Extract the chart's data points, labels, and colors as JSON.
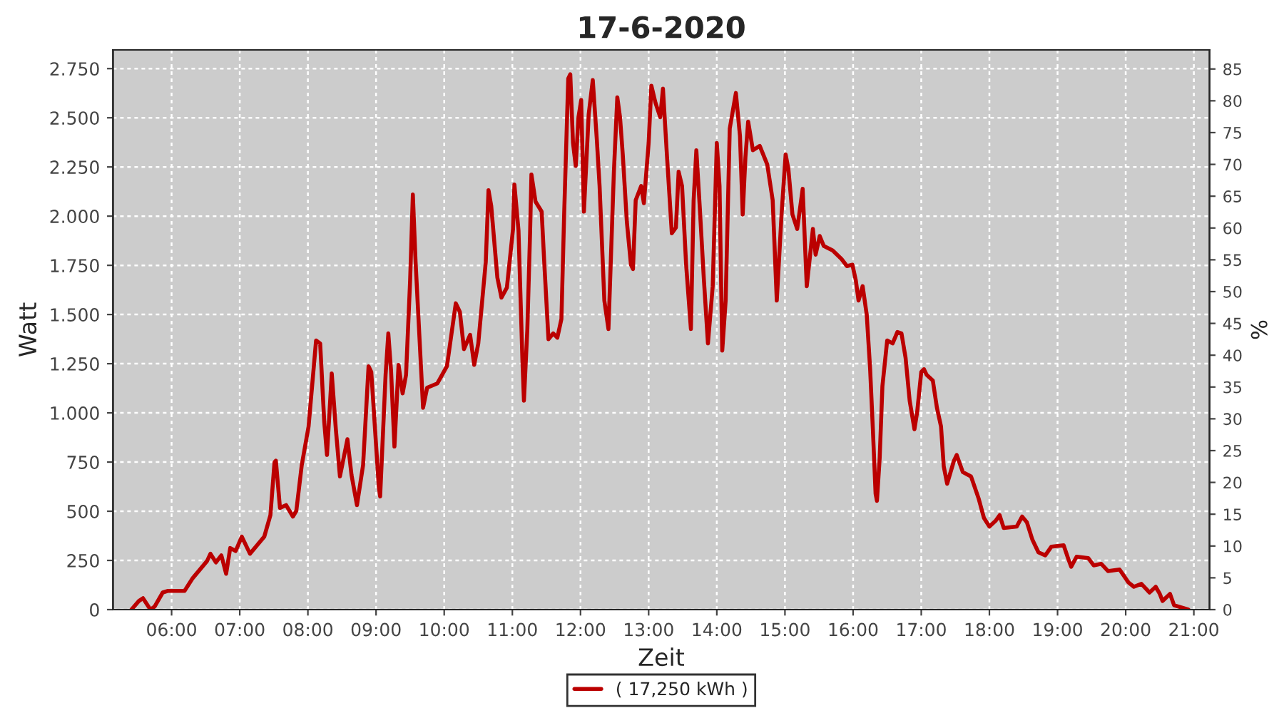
{
  "chart_data": {
    "type": "line",
    "title": "17-6-2020",
    "xlabel": "Zeit",
    "ylabel": "Watt",
    "y2label": "%",
    "x": [
      5.41,
      5.52,
      5.58,
      5.69,
      5.75,
      5.87,
      5.94,
      6.19,
      6.31,
      6.52,
      6.57,
      6.65,
      6.73,
      6.8,
      6.86,
      6.94,
      7.03,
      7.15,
      7.36,
      7.45,
      7.51,
      7.53,
      7.59,
      7.68,
      7.78,
      7.83,
      7.91,
      8.01,
      8.12,
      8.18,
      8.24,
      8.28,
      8.35,
      8.41,
      8.47,
      8.58,
      8.64,
      8.72,
      8.81,
      8.89,
      8.93,
      9.04,
      9.06,
      9.14,
      9.18,
      9.22,
      9.27,
      9.33,
      9.39,
      9.44,
      9.5,
      9.54,
      9.58,
      9.69,
      9.75,
      9.9,
      10.04,
      10.17,
      10.23,
      10.29,
      10.38,
      10.44,
      10.5,
      10.61,
      10.65,
      10.69,
      10.78,
      10.84,
      10.92,
      11.01,
      11.03,
      11.09,
      11.15,
      11.17,
      11.22,
      11.26,
      11.28,
      11.34,
      11.43,
      11.47,
      11.53,
      11.6,
      11.66,
      11.72,
      11.76,
      11.82,
      11.85,
      11.89,
      11.93,
      11.97,
      12.01,
      12.05,
      12.12,
      12.18,
      12.24,
      12.28,
      12.35,
      12.41,
      12.49,
      12.54,
      12.58,
      12.62,
      12.68,
      12.74,
      12.77,
      12.81,
      12.89,
      12.93,
      13.0,
      13.04,
      13.1,
      13.17,
      13.21,
      13.27,
      13.34,
      13.4,
      13.44,
      13.49,
      13.55,
      13.62,
      13.66,
      13.7,
      13.75,
      13.81,
      13.87,
      13.94,
      14.0,
      14.04,
      14.08,
      14.13,
      14.19,
      14.28,
      14.34,
      14.38,
      14.42,
      14.46,
      14.53,
      14.63,
      14.74,
      14.82,
      14.88,
      14.95,
      15.01,
      15.05,
      15.11,
      15.18,
      15.26,
      15.32,
      15.41,
      15.45,
      15.51,
      15.57,
      15.7,
      15.83,
      15.91,
      15.99,
      16.04,
      16.08,
      16.14,
      16.2,
      16.25,
      16.29,
      16.33,
      16.35,
      16.39,
      16.43,
      16.5,
      16.58,
      16.65,
      16.71,
      16.77,
      16.83,
      16.9,
      16.94,
      17.0,
      17.04,
      17.08,
      17.17,
      17.23,
      17.29,
      17.33,
      17.38,
      17.48,
      17.52,
      17.61,
      17.73,
      17.84,
      17.92,
      18.0,
      18.09,
      18.15,
      18.21,
      18.4,
      18.48,
      18.55,
      18.63,
      18.72,
      18.82,
      18.91,
      19.09,
      19.16,
      19.2,
      19.28,
      19.45,
      19.53,
      19.64,
      19.74,
      19.91,
      20.04,
      20.12,
      20.23,
      20.35,
      20.44,
      20.5,
      20.54,
      20.65,
      20.71,
      20.92
    ],
    "series": [
      {
        "name": "( 17,250 kWh )",
        "color": "#bb0000",
        "values": [
          0,
          44,
          58,
          0,
          15,
          87,
          95,
          95,
          160,
          247,
          284,
          240,
          276,
          182,
          313,
          298,
          371,
          284,
          371,
          480,
          749,
          757,
          517,
          531,
          473,
          502,
          735,
          931,
          1368,
          1353,
          953,
          786,
          1200,
          917,
          677,
          866,
          684,
          531,
          735,
          1237,
          1208,
          626,
          575,
          1193,
          1404,
          1215,
          829,
          1244,
          1099,
          1193,
          1673,
          2110,
          1768,
          1026,
          1128,
          1150,
          1237,
          1557,
          1513,
          1324,
          1397,
          1244,
          1353,
          1768,
          2132,
          2052,
          1688,
          1586,
          1637,
          1935,
          2161,
          1928,
          1244,
          1062,
          1426,
          1913,
          2212,
          2074,
          2023,
          1753,
          1375,
          1404,
          1382,
          1477,
          2008,
          2699,
          2721,
          2372,
          2255,
          2503,
          2590,
          2023,
          2517,
          2692,
          2386,
          2153,
          1571,
          1426,
          2226,
          2604,
          2503,
          2314,
          1972,
          1753,
          1731,
          2081,
          2153,
          2066,
          2372,
          2663,
          2576,
          2503,
          2648,
          2299,
          1913,
          1942,
          2226,
          2153,
          1753,
          1426,
          2081,
          2335,
          2045,
          1680,
          1353,
          1644,
          2372,
          2153,
          1317,
          1571,
          2445,
          2626,
          2408,
          2008,
          2299,
          2481,
          2335,
          2357,
          2263,
          2081,
          1571,
          2008,
          2314,
          2241,
          2008,
          1935,
          2139,
          1644,
          1935,
          1804,
          1899,
          1848,
          1826,
          1782,
          1746,
          1753,
          1673,
          1571,
          1644,
          1499,
          1222,
          917,
          589,
          553,
          771,
          1135,
          1368,
          1353,
          1411,
          1404,
          1280,
          1062,
          917,
          1004,
          1208,
          1222,
          1193,
          1164,
          1026,
          931,
          728,
          640,
          757,
          786,
          699,
          677,
          567,
          466,
          422,
          451,
          480,
          415,
          422,
          473,
          444,
          356,
          291,
          276,
          320,
          327,
          255,
          218,
          269,
          262,
          225,
          233,
          196,
          204,
          138,
          116,
          131,
          87,
          116,
          80,
          44,
          80,
          22,
          0
        ]
      }
    ],
    "xlim": [
      5.14,
      21.23
    ],
    "xticks": [
      {
        "value": 6,
        "label": "06:00"
      },
      {
        "value": 7,
        "label": "07:00"
      },
      {
        "value": 8,
        "label": "08:00"
      },
      {
        "value": 9,
        "label": "09:00"
      },
      {
        "value": 10,
        "label": "10:00"
      },
      {
        "value": 11,
        "label": "11:00"
      },
      {
        "value": 12,
        "label": "12:00"
      },
      {
        "value": 13,
        "label": "13:00"
      },
      {
        "value": 14,
        "label": "14:00"
      },
      {
        "value": 15,
        "label": "15:00"
      },
      {
        "value": 16,
        "label": "16:00"
      },
      {
        "value": 17,
        "label": "17:00"
      },
      {
        "value": 18,
        "label": "18:00"
      },
      {
        "value": 19,
        "label": "19:00"
      },
      {
        "value": 20,
        "label": "20:00"
      },
      {
        "value": 21,
        "label": "21:00"
      }
    ],
    "ylim": [
      0,
      2845
    ],
    "yticks": [
      0,
      250,
      500,
      750,
      {
        "value": 1000,
        "label": "1.000"
      },
      {
        "value": 1250,
        "label": "1.250"
      },
      {
        "value": 1500,
        "label": "1.500"
      },
      {
        "value": 1750,
        "label": "1.750"
      },
      {
        "value": 2000,
        "label": "2.000"
      },
      {
        "value": 2250,
        "label": "2.250"
      },
      {
        "value": 2500,
        "label": "2.500"
      },
      {
        "value": 2750,
        "label": "2.750"
      }
    ],
    "y2lim": [
      0,
      88
    ],
    "y2ticks": [
      0,
      5,
      10,
      15,
      20,
      25,
      30,
      35,
      40,
      45,
      50,
      55,
      60,
      65,
      70,
      75,
      80,
      85
    ],
    "grid": true,
    "legend": "bottom",
    "marker": "none",
    "line_style": "solid"
  }
}
